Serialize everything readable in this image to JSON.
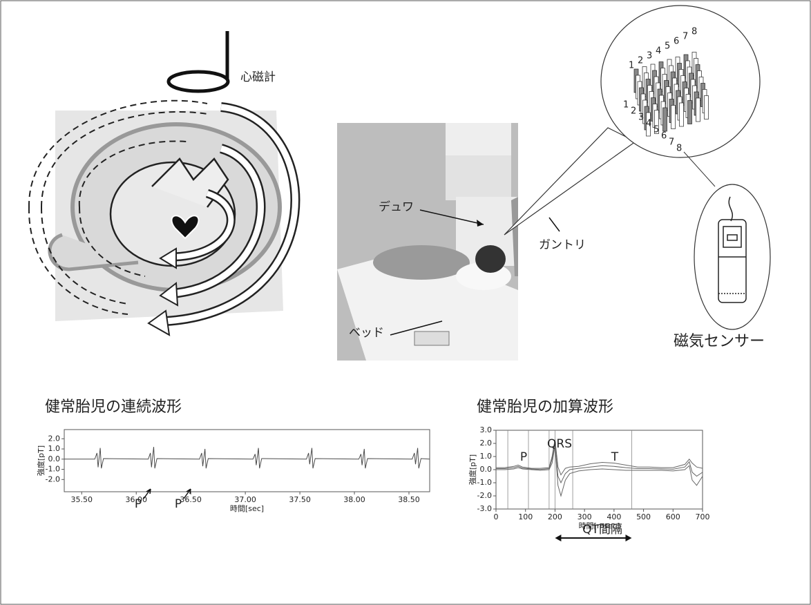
{
  "labels": {
    "magnetometer": "心磁計",
    "dewar": "デュワ",
    "gantry": "ガントリ",
    "bed": "ベッド",
    "sensor": "磁気センサー",
    "sensor_numbers": [
      "1",
      "2",
      "3",
      "4",
      "5",
      "6",
      "7",
      "8"
    ]
  },
  "chart_data": [
    {
      "type": "line",
      "title": "健常胎児の連続波形",
      "xlabel": "時間[sec]",
      "ylabel": "強度[pT]",
      "annotations": [
        "P",
        "P"
      ],
      "x": [
        35.34,
        35.62,
        35.64,
        35.65,
        35.67,
        35.68,
        35.7,
        36.11,
        36.13,
        36.14,
        36.16,
        36.17,
        36.19,
        36.58,
        36.6,
        36.61,
        36.63,
        36.64,
        36.66,
        37.07,
        37.09,
        37.1,
        37.12,
        37.13,
        37.15,
        37.56,
        37.58,
        37.59,
        37.61,
        37.62,
        37.64,
        38.04,
        38.06,
        38.07,
        38.09,
        38.1,
        38.12,
        38.53,
        38.55,
        38.56,
        38.58,
        38.59,
        38.61,
        38.69
      ],
      "series": [
        {
          "color": "#4a4a4a",
          "values": [
            0,
            0,
            0.6,
            -0.8,
            1.1,
            -0.9,
            0.05,
            0,
            0.6,
            -0.8,
            1.2,
            -0.9,
            0.05,
            0,
            0.6,
            -0.7,
            1.0,
            -0.9,
            0.05,
            0,
            0.5,
            -0.6,
            1.1,
            -0.9,
            0.05,
            0,
            0.6,
            -0.5,
            1.1,
            -0.9,
            0.05,
            0,
            0.5,
            -0.6,
            1.0,
            -0.9,
            0.05,
            0,
            0.6,
            -0.5,
            1.1,
            -0.9,
            0.05,
            0
          ]
        }
      ],
      "xlim": [
        35.34,
        38.69
      ],
      "ylim": [
        -3.2,
        2.9
      ],
      "xticks": [
        {
          "value": 35.5,
          "label": "35.50"
        },
        {
          "value": 36,
          "label": "36.00"
        },
        {
          "value": 36.5,
          "label": "36.50"
        },
        {
          "value": 37,
          "label": "37.00"
        },
        {
          "value": 37.5,
          "label": "37.50"
        },
        {
          "value": 38,
          "label": "38.00"
        },
        {
          "value": 38.5,
          "label": "38.50"
        }
      ],
      "yticks": [
        {
          "value": 2,
          "label": "2.0"
        },
        {
          "value": 1,
          "label": "1.0"
        },
        {
          "value": 0,
          "label": "0.0"
        },
        {
          "value": -1,
          "label": "-1.0"
        },
        {
          "value": -2,
          "label": "-2.0"
        }
      ]
    },
    {
      "type": "line",
      "title": "健常胎児の加算波形",
      "xlabel": "時間[msec]",
      "ylabel": "強度[pT]",
      "annotations": [
        "P",
        "QRS",
        "T",
        "QT間隔"
      ],
      "vlines": [
        40,
        110,
        180,
        200,
        260,
        460
      ],
      "x": [
        0,
        30,
        60,
        75,
        90,
        120,
        150,
        180,
        190,
        200,
        210,
        220,
        235,
        250,
        280,
        320,
        360,
        400,
        440,
        480,
        520,
        560,
        600,
        640,
        655,
        665,
        680,
        700
      ],
      "series": [
        {
          "color": "#666666",
          "values": [
            0.15,
            0.15,
            0.25,
            0.35,
            0.2,
            0.1,
            0.1,
            0.15,
            1.0,
            2.3,
            0.2,
            -0.4,
            0.1,
            0.2,
            0.25,
            0.45,
            0.55,
            0.5,
            0.35,
            0.2,
            0.2,
            0.15,
            0.15,
            0.4,
            0.8,
            0.5,
            0.2,
            0.1
          ]
        },
        {
          "color": "#666666",
          "values": [
            0.0,
            0.0,
            0.05,
            0.15,
            0.05,
            0.0,
            -0.05,
            0.0,
            0.5,
            1.8,
            -1.2,
            -2.0,
            -0.8,
            -0.3,
            -0.1,
            0.0,
            0.05,
            0.0,
            -0.05,
            -0.05,
            -0.05,
            -0.05,
            -0.1,
            0.0,
            0.3,
            -0.8,
            -1.2,
            -0.5
          ]
        },
        {
          "color": "#666666",
          "values": [
            0.08,
            0.08,
            0.15,
            0.25,
            0.12,
            0.05,
            0.02,
            0.08,
            0.8,
            2.0,
            -0.5,
            -1.0,
            -0.3,
            0,
            0.1,
            0.2,
            0.3,
            0.25,
            0.15,
            0.08,
            0.08,
            0.05,
            0.03,
            0.2,
            0.6,
            -0.2,
            -0.5,
            -0.2
          ]
        }
      ],
      "xlim": [
        0,
        700
      ],
      "ylim": [
        -3,
        3
      ],
      "xticks": [
        0,
        100,
        200,
        300,
        400,
        500,
        600,
        700
      ],
      "yticks": [
        {
          "value": 3,
          "label": "3.0"
        },
        {
          "value": 2,
          "label": "2.0"
        },
        {
          "value": 1,
          "label": "1.0"
        },
        {
          "value": 0,
          "label": "0.0"
        },
        {
          "value": -1,
          "label": "-1.0"
        },
        {
          "value": -2,
          "label": "-2.0"
        },
        {
          "value": -3,
          "label": "-3.0"
        }
      ]
    }
  ]
}
